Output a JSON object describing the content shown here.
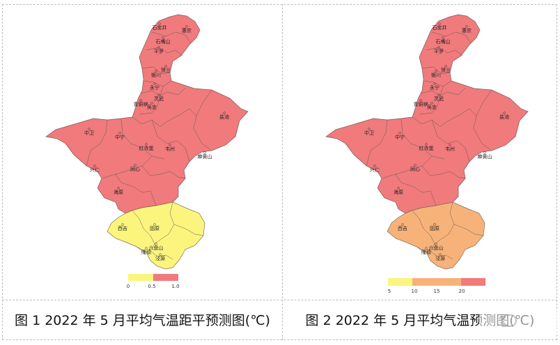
{
  "panel1": {
    "caption": "图 1 2022 年 5 月平均气温距平预测图(℃)",
    "colors": {
      "north": "#f07a7c",
      "south": "#fbf57e"
    },
    "legend": {
      "colors": [
        "#fbf57e",
        "#f07a7c"
      ],
      "ticks": [
        "0",
        "0.5",
        "1.0"
      ]
    }
  },
  "panel2": {
    "caption": "图 2 2022 年 5 月平均气温预测图(℃)",
    "colors": {
      "north": "#f07a7c",
      "south": "#f7b27a"
    },
    "legend": {
      "colors": [
        "#fbf57e",
        "#f7b27a",
        "#f7b27a",
        "#f07a7c"
      ],
      "ticks": [
        "5",
        "10",
        "15",
        "20"
      ]
    }
  },
  "places": [
    {
      "name": "石嘴山"
    },
    {
      "name": "惠农"
    },
    {
      "name": "平罗"
    },
    {
      "name": "贺兰"
    },
    {
      "name": "银川"
    },
    {
      "name": "永宁"
    },
    {
      "name": "灵武"
    },
    {
      "name": "青铜峡"
    },
    {
      "name": "吴忠"
    },
    {
      "name": "盐池"
    },
    {
      "name": "中卫"
    },
    {
      "name": "中宁"
    },
    {
      "name": "红寺堡"
    },
    {
      "name": "同心"
    },
    {
      "name": "兴仁"
    },
    {
      "name": "韦州"
    },
    {
      "name": "麻黄山"
    },
    {
      "name": "海原"
    },
    {
      "name": "西吉"
    },
    {
      "name": "固原"
    },
    {
      "name": "隆德"
    },
    {
      "name": "泾源"
    },
    {
      "name": "六盘山"
    },
    {
      "name": "石炭井"
    }
  ]
}
